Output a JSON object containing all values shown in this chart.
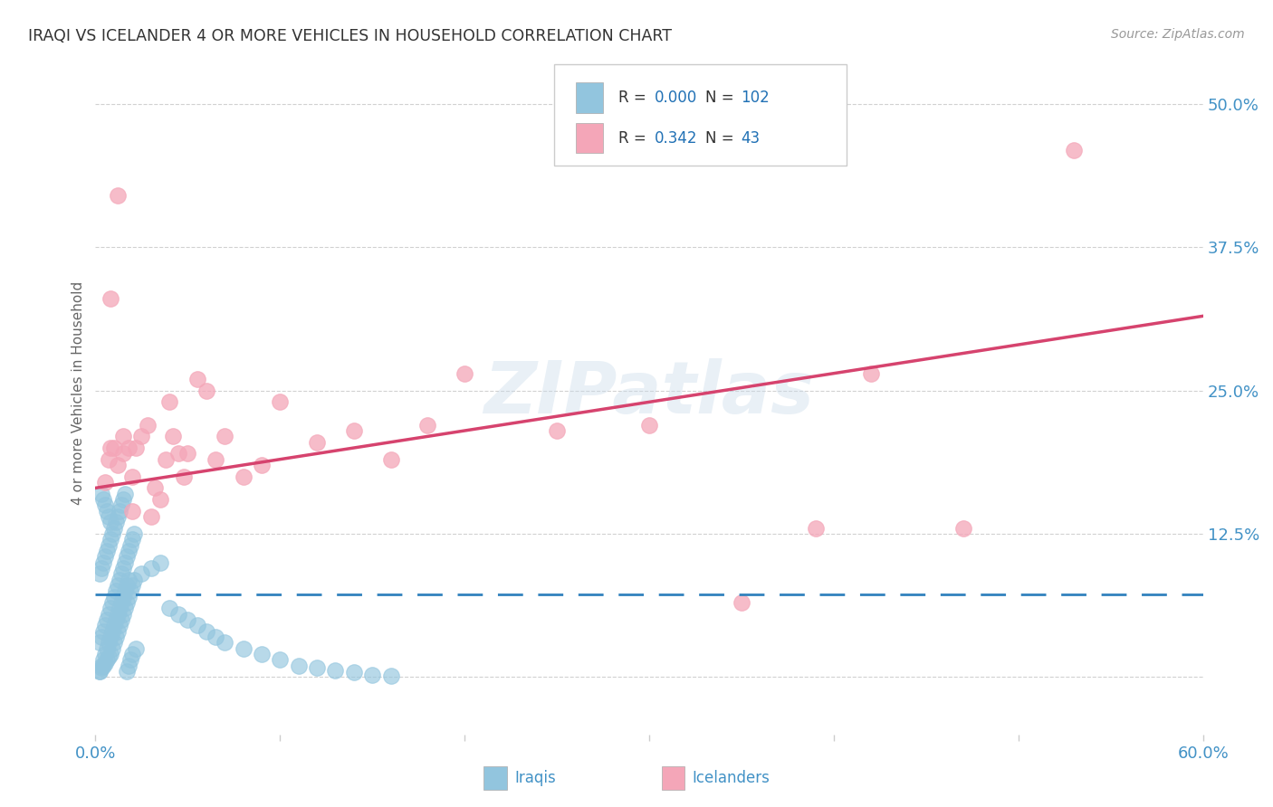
{
  "title": "IRAQI VS ICELANDER 4 OR MORE VEHICLES IN HOUSEHOLD CORRELATION CHART",
  "source": "Source: ZipAtlas.com",
  "ylabel": "4 or more Vehicles in Household",
  "xmin": 0.0,
  "xmax": 0.6,
  "ymin": -0.05,
  "ymax": 0.545,
  "yticks": [
    0.0,
    0.125,
    0.25,
    0.375,
    0.5
  ],
  "ytick_labels": [
    "",
    "12.5%",
    "25.0%",
    "37.5%",
    "50.0%"
  ],
  "iraqi_color": "#92c5de",
  "icelander_color": "#f4a6b8",
  "iraqi_R": 0.0,
  "iraqi_N": 102,
  "icelander_R": 0.342,
  "icelander_N": 43,
  "iraqi_trend_color": "#3182bd",
  "icelander_trend_color": "#d6436e",
  "background_color": "#ffffff",
  "grid_color": "#cccccc",
  "title_color": "#333333",
  "axis_label_color": "#4292c6",
  "legend_R_color": "#2171b5",
  "iraqi_trend_y": 0.072,
  "icelander_trend_y0": 0.165,
  "icelander_trend_y1": 0.315,
  "iraqi_x": [
    0.002,
    0.003,
    0.004,
    0.005,
    0.006,
    0.007,
    0.008,
    0.009,
    0.01,
    0.011,
    0.012,
    0.013,
    0.014,
    0.015,
    0.016,
    0.017,
    0.018,
    0.019,
    0.02,
    0.021,
    0.002,
    0.003,
    0.004,
    0.005,
    0.006,
    0.007,
    0.008,
    0.009,
    0.01,
    0.011,
    0.012,
    0.013,
    0.014,
    0.015,
    0.016,
    0.017,
    0.018,
    0.019,
    0.02,
    0.022,
    0.002,
    0.003,
    0.004,
    0.005,
    0.006,
    0.007,
    0.008,
    0.009,
    0.01,
    0.011,
    0.012,
    0.013,
    0.014,
    0.015,
    0.016,
    0.017,
    0.018,
    0.019,
    0.02,
    0.021,
    0.002,
    0.003,
    0.004,
    0.005,
    0.006,
    0.007,
    0.008,
    0.009,
    0.01,
    0.011,
    0.012,
    0.013,
    0.014,
    0.015,
    0.016,
    0.017,
    0.018,
    0.025,
    0.03,
    0.035,
    0.04,
    0.045,
    0.05,
    0.055,
    0.06,
    0.065,
    0.07,
    0.08,
    0.09,
    0.1,
    0.11,
    0.12,
    0.13,
    0.14,
    0.15,
    0.16,
    0.003,
    0.004,
    0.005,
    0.006,
    0.007,
    0.008
  ],
  "iraqi_y": [
    0.005,
    0.008,
    0.01,
    0.012,
    0.015,
    0.018,
    0.02,
    0.025,
    0.03,
    0.035,
    0.04,
    0.045,
    0.05,
    0.055,
    0.06,
    0.065,
    0.07,
    0.075,
    0.08,
    0.085,
    0.09,
    0.095,
    0.1,
    0.105,
    0.11,
    0.115,
    0.12,
    0.125,
    0.13,
    0.135,
    0.14,
    0.145,
    0.15,
    0.155,
    0.16,
    0.005,
    0.01,
    0.015,
    0.02,
    0.025,
    0.03,
    0.035,
    0.04,
    0.045,
    0.05,
    0.055,
    0.06,
    0.065,
    0.07,
    0.075,
    0.08,
    0.085,
    0.09,
    0.095,
    0.1,
    0.105,
    0.11,
    0.115,
    0.12,
    0.125,
    0.005,
    0.01,
    0.015,
    0.02,
    0.025,
    0.03,
    0.035,
    0.04,
    0.045,
    0.05,
    0.055,
    0.06,
    0.065,
    0.07,
    0.075,
    0.08,
    0.085,
    0.09,
    0.095,
    0.1,
    0.06,
    0.055,
    0.05,
    0.045,
    0.04,
    0.035,
    0.03,
    0.025,
    0.02,
    0.015,
    0.01,
    0.008,
    0.006,
    0.004,
    0.002,
    0.001,
    0.16,
    0.155,
    0.15,
    0.145,
    0.14,
    0.135
  ],
  "icelander_x": [
    0.005,
    0.007,
    0.008,
    0.01,
    0.012,
    0.015,
    0.015,
    0.018,
    0.02,
    0.02,
    0.022,
    0.025,
    0.028,
    0.03,
    0.032,
    0.035,
    0.038,
    0.04,
    0.042,
    0.045,
    0.048,
    0.05,
    0.055,
    0.06,
    0.065,
    0.07,
    0.08,
    0.09,
    0.1,
    0.12,
    0.14,
    0.16,
    0.18,
    0.2,
    0.25,
    0.3,
    0.35,
    0.39,
    0.42,
    0.47,
    0.53,
    0.008,
    0.012
  ],
  "icelander_y": [
    0.17,
    0.19,
    0.2,
    0.2,
    0.185,
    0.195,
    0.21,
    0.2,
    0.145,
    0.175,
    0.2,
    0.21,
    0.22,
    0.14,
    0.165,
    0.155,
    0.19,
    0.24,
    0.21,
    0.195,
    0.175,
    0.195,
    0.26,
    0.25,
    0.19,
    0.21,
    0.175,
    0.185,
    0.24,
    0.205,
    0.215,
    0.19,
    0.22,
    0.265,
    0.215,
    0.22,
    0.065,
    0.13,
    0.265,
    0.13,
    0.46,
    0.33,
    0.42
  ]
}
